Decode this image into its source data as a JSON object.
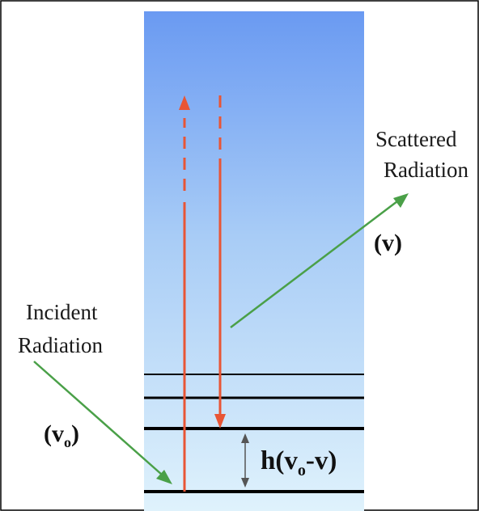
{
  "labels": {
    "scattered_line1": "Scattered",
    "scattered_line2": "Radiation",
    "scattered_freq": "(v)",
    "incident_line1": "Incident",
    "incident_line2": "Radiation",
    "incident_freq_main": "(v",
    "incident_freq_sub": "o",
    "incident_freq_close": ")",
    "energy_gap_main1": "h(v",
    "energy_gap_sub": "o",
    "energy_gap_main2": "-v)"
  },
  "colors": {
    "band_top": "#6a9af2",
    "band_bottom": "#dff2fc",
    "transition_arrows": "#e85535",
    "radiation_arrows": "#4aa048",
    "levels": "#000000",
    "gap_arrow": "#555555"
  }
}
